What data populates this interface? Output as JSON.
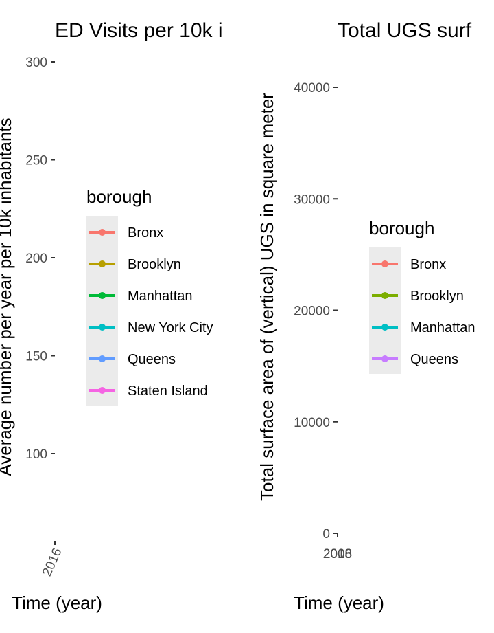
{
  "chart_data": [
    {
      "type": "line",
      "title": "ED Visits per 10k i",
      "xlabel": "Time (year)",
      "ylabel": "Average number per year per 10k inhabitants",
      "x_ticks": [
        "2016"
      ],
      "y_ticks": [
        100,
        150,
        200,
        250,
        300
      ],
      "ylim": [
        55,
        310
      ],
      "legend": {
        "title": "borough",
        "placement": "right",
        "entries": [
          {
            "name": "Bronx",
            "color": "#F8766D"
          },
          {
            "name": "Brooklyn",
            "color": "#B79F00"
          },
          {
            "name": "Manhattan",
            "color": "#00BA38"
          },
          {
            "name": "New York City",
            "color": "#00BFC4"
          },
          {
            "name": "Queens",
            "color": "#619CFF"
          },
          {
            "name": "Staten Island",
            "color": "#F564E3"
          }
        ]
      },
      "series": [],
      "grid": false
    },
    {
      "type": "line",
      "title": "Total UGS surf",
      "xlabel": "Time (year)",
      "ylabel": "Total surface area of (vertical) UGS in square meter",
      "x_ticks": [
        "2008",
        "2016",
        "2018"
      ],
      "y_ticks": [
        0,
        10000,
        20000,
        30000,
        40000
      ],
      "ylim": [
        -500,
        42000
      ],
      "legend": {
        "title": "borough",
        "placement": "right",
        "entries": [
          {
            "name": "Bronx",
            "color": "#F8766D"
          },
          {
            "name": "Brooklyn",
            "color": "#7CAE00"
          },
          {
            "name": "Manhattan",
            "color": "#00BFC4"
          },
          {
            "name": "Queens",
            "color": "#C77CFF"
          }
        ]
      },
      "series": [],
      "grid": false
    }
  ],
  "colors": {
    "legend_key_bg": "#ebebeb",
    "tick": "#333333",
    "tick_label": "#4d4d4d"
  }
}
